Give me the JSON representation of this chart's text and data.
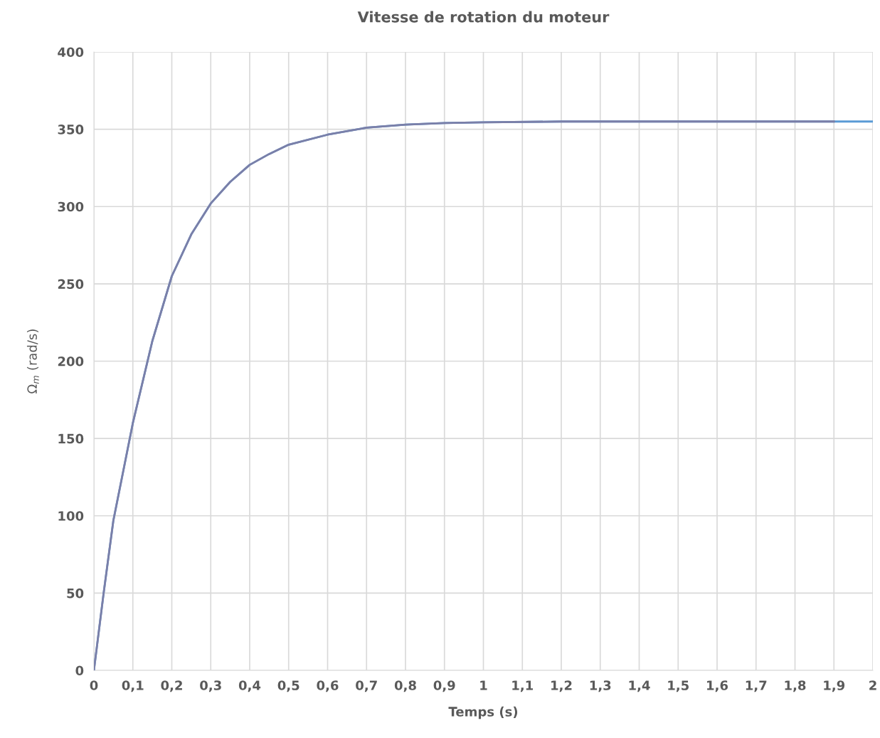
{
  "chart_data": {
    "type": "line",
    "title": "Vitesse de rotation du moteur",
    "xlabel": "Temps (s)",
    "ylabel": "Ω$_{m}$ (rad/s)",
    "series": [
      {
        "color": "#5b9bd5",
        "x": [
          0,
          0.025,
          0.05,
          0.1,
          0.15,
          0.2,
          0.25,
          0.3,
          0.35,
          0.4,
          0.45,
          0.5,
          0.6,
          0.7,
          0.8,
          0.9,
          1.0,
          1.2,
          1.5,
          2.0
        ],
        "values": [
          0,
          50,
          97,
          160,
          213,
          255,
          282,
          302,
          316,
          327,
          334,
          340,
          346.5,
          351,
          353,
          354,
          354.5,
          355,
          355,
          355
        ]
      },
      {
        "color": "#7b7fa8",
        "x": [
          0,
          0.025,
          0.05,
          0.1,
          0.15,
          0.2,
          0.25,
          0.3,
          0.35,
          0.4,
          0.45,
          0.5,
          0.6,
          0.7,
          0.8,
          0.9,
          1.0,
          1.2,
          1.5,
          1.9
        ],
        "values": [
          0,
          50,
          97,
          160,
          213,
          255,
          282,
          302,
          316,
          327,
          334,
          340,
          346.5,
          351,
          353,
          354,
          354.5,
          355,
          355,
          355
        ]
      }
    ],
    "xlim": [
      0,
      2
    ],
    "xticks": [
      0,
      {
        "value": 0.1,
        "label": "0,1"
      },
      {
        "value": 0.2,
        "label": "0,2"
      },
      {
        "value": 0.3,
        "label": "0,3"
      },
      {
        "value": 0.4,
        "label": "0,4"
      },
      {
        "value": 0.5,
        "label": "0,5"
      },
      {
        "value": 0.6,
        "label": "0,6"
      },
      {
        "value": 0.7,
        "label": "0,7"
      },
      {
        "value": 0.8,
        "label": "0,8"
      },
      {
        "value": 0.9,
        "label": "0,9"
      },
      1,
      {
        "value": 1.1,
        "label": "1,1"
      },
      {
        "value": 1.2,
        "label": "1,2"
      },
      {
        "value": 1.3,
        "label": "1,3"
      },
      {
        "value": 1.4,
        "label": "1,4"
      },
      {
        "value": 1.5,
        "label": "1,5"
      },
      {
        "value": 1.6,
        "label": "1,6"
      },
      {
        "value": 1.7,
        "label": "1,7"
      },
      {
        "value": 1.8,
        "label": "1,8"
      },
      {
        "value": 1.9,
        "label": "1,9"
      },
      2
    ],
    "ylim": [
      0,
      400
    ],
    "yticks": [
      0,
      50,
      100,
      150,
      200,
      250,
      300,
      350,
      400
    ],
    "grid": true,
    "marker": "none",
    "line_style": "solid"
  }
}
